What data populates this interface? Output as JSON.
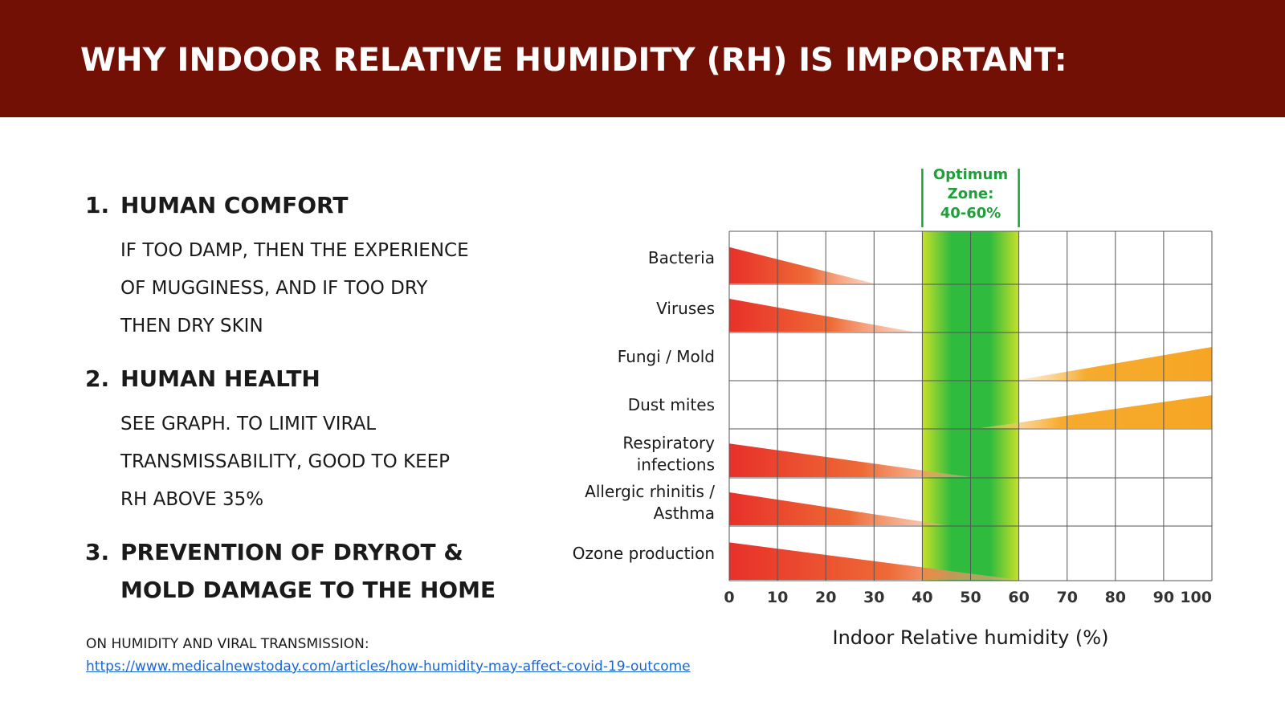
{
  "slide": {
    "title": "WHY INDOOR RELATIVE HUMIDITY (RH) IS IMPORTANT:"
  },
  "sections": [
    {
      "number": "1.",
      "heading": "HUMAN COMFORT",
      "lines": [
        "IF TOO DAMP, THEN THE EXPERIENCE",
        "OF MUGGINESS, AND IF TOO DRY",
        "THEN DRY SKIN"
      ]
    },
    {
      "number": "2.",
      "heading": "HUMAN HEALTH",
      "lines": [
        "SEE GRAPH.  TO LIMIT VIRAL",
        "TRANSMISSABILITY, GOOD TO KEEP",
        "RH ABOVE 35%"
      ]
    },
    {
      "number": "3.",
      "heading": "PREVENTION OF DRYROT &",
      "heading2": "MOLD DAMAGE TO THE HOME"
    }
  ],
  "reference": {
    "label": "ON HUMIDITY AND VIRAL TRANSMISSION:",
    "link": "https://www.medicalnewstoday.com/articles/how-humidity-may-affect-covid-19-outcome"
  },
  "chart_data": {
    "type": "area",
    "xlabel": "Indoor Relative humidity (%)",
    "xlim": [
      0,
      100
    ],
    "xticks": [
      "0",
      "10",
      "20",
      "30",
      "40",
      "50",
      "60",
      "70",
      "80",
      "90",
      "100"
    ],
    "optimum_zone": {
      "label_lines": [
        "Optimum",
        "Zone:",
        "40-60%"
      ],
      "range": [
        40,
        60
      ],
      "color": "#1f9e3a"
    },
    "colors": {
      "low_humidity": "#e8302a",
      "high_humidity": "#f6a623",
      "zone_green": "#2fbb3e",
      "zone_edge": "#c8e02a"
    },
    "rows": [
      {
        "label_lines": [
          "Bacteria"
        ],
        "side": "low",
        "extent": [
          0,
          30
        ]
      },
      {
        "label_lines": [
          "Viruses"
        ],
        "side": "low",
        "extent": [
          0,
          38
        ]
      },
      {
        "label_lines": [
          "Fungi / Mold"
        ],
        "side": "high",
        "extent": [
          60,
          100
        ]
      },
      {
        "label_lines": [
          "Dust mites"
        ],
        "side": "high",
        "extent": [
          52,
          100
        ]
      },
      {
        "label_lines": [
          "Respiratory",
          "infections"
        ],
        "side": "low",
        "extent": [
          0,
          50
        ]
      },
      {
        "label_lines": [
          "Allergic rhinitis /",
          "Asthma"
        ],
        "side": "low",
        "extent": [
          0,
          45
        ]
      },
      {
        "label_lines": [
          "Ozone production"
        ],
        "side": "low",
        "extent": [
          0,
          60
        ]
      }
    ]
  }
}
